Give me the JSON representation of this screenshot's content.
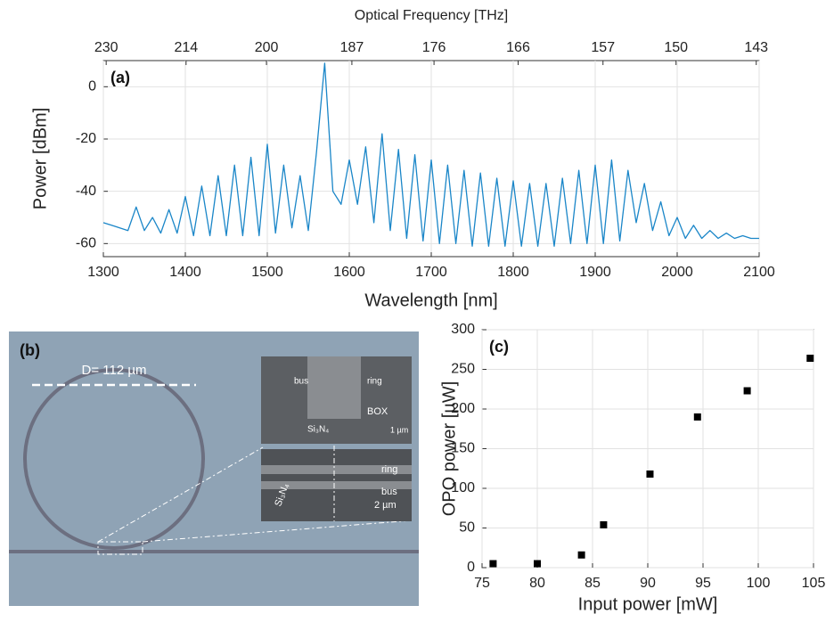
{
  "chart_data": [
    {
      "type": "line",
      "annotation": "(a)",
      "xlabel": "Wavelength [nm]",
      "ylabel": "Power [dBm]",
      "x2label": "Optical Frequency [THz]",
      "x": [
        1300,
        1310,
        1320,
        1330,
        1340,
        1350,
        1360,
        1370,
        1380,
        1390,
        1400,
        1410,
        1420,
        1430,
        1440,
        1450,
        1460,
        1470,
        1480,
        1490,
        1500,
        1510,
        1520,
        1530,
        1540,
        1550,
        1560,
        1570,
        1580,
        1590,
        1600,
        1610,
        1620,
        1630,
        1640,
        1650,
        1660,
        1670,
        1680,
        1690,
        1700,
        1710,
        1720,
        1730,
        1740,
        1750,
        1760,
        1770,
        1780,
        1790,
        1800,
        1810,
        1820,
        1830,
        1840,
        1850,
        1860,
        1870,
        1880,
        1890,
        1900,
        1910,
        1920,
        1930,
        1940,
        1950,
        1960,
        1970,
        1980,
        1990,
        2000,
        2010,
        2020,
        2030,
        2040,
        2050,
        2060,
        2070,
        2080,
        2090,
        2100
      ],
      "series": [
        {
          "color": "#1a86c8",
          "values": [
            -52,
            -53,
            -54,
            -55,
            -46,
            -55,
            -50,
            -56,
            -47,
            -56,
            -42,
            -57,
            -38,
            -57,
            -34,
            -57,
            -30,
            -57,
            -27,
            -57,
            -22,
            -56,
            -30,
            -54,
            -34,
            -55,
            -25,
            9,
            -40,
            -45,
            -28,
            -45,
            -23,
            -52,
            -18,
            -55,
            -24,
            -58,
            -26,
            -59,
            -28,
            -60,
            -30,
            -60,
            -32,
            -61,
            -33,
            -61,
            -35,
            -61,
            -36,
            -61,
            -37,
            -61,
            -37,
            -61,
            -35,
            -60,
            -32,
            -60,
            -30,
            -60,
            -28,
            -59,
            -32,
            -52,
            -37,
            -55,
            -44,
            -57,
            -50,
            -58,
            -53,
            -58,
            -55,
            -58,
            -56,
            -58,
            -57,
            -58,
            -58
          ]
        }
      ],
      "xlim": [
        1300,
        2100
      ],
      "ylim": [
        -65,
        10
      ],
      "xticks": [
        1300,
        1400,
        1500,
        1600,
        1700,
        1800,
        1900,
        2000,
        2100
      ],
      "yticks": [
        0,
        -20,
        -40,
        -60
      ],
      "x2ticks": [
        230,
        214,
        200,
        187,
        176,
        166,
        157,
        150,
        143
      ],
      "x2scale": "inverse-wavelength",
      "grid": true
    },
    {
      "type": "scatter",
      "annotation": "(c)",
      "xlabel": "Input power [mW]",
      "ylabel": "OPO power [µW]",
      "x": [
        76,
        80,
        84,
        86,
        90.2,
        94.5,
        99,
        104.7
      ],
      "series": [
        {
          "color": "#000000",
          "values": [
            5,
            5,
            16,
            54,
            118,
            190,
            223,
            264
          ]
        }
      ],
      "xlim": [
        75,
        105
      ],
      "ylim": [
        0,
        300
      ],
      "xticks": [
        75,
        80,
        85,
        90,
        95,
        100,
        105
      ],
      "yticks": [
        0,
        50,
        100,
        150,
        200,
        250,
        300
      ],
      "grid": true
    }
  ],
  "image_b": {
    "label": "(b)",
    "diameter": "D= 112  µm",
    "sem_top": {
      "left": "bus",
      "right": "ring",
      "box": "BOX",
      "material": "Si₃N₄",
      "scale": "1 µm"
    },
    "sem_bottom": {
      "ring": "ring",
      "bus": "bus",
      "material": "Si₃N₄",
      "scale": "2 µm"
    }
  }
}
